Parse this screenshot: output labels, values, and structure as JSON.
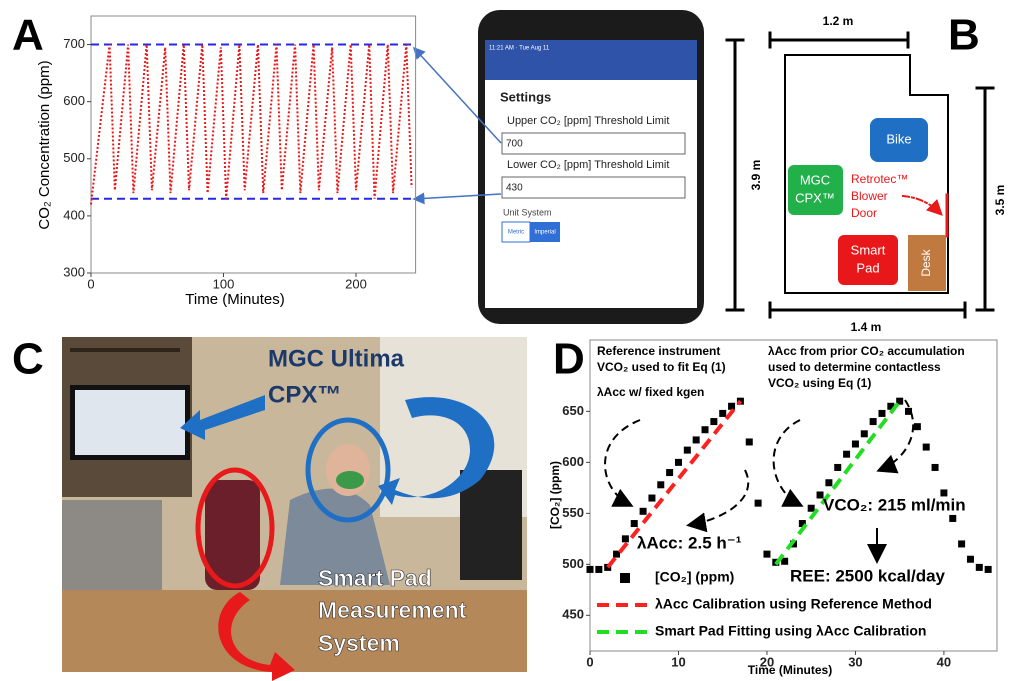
{
  "panel_labels": [
    "A",
    "B",
    "C",
    "D"
  ],
  "chart_data": [
    {
      "type": "line",
      "xlabel": "Time (Minutes)",
      "ylabel": "CO₂ Concentration (ppm)",
      "x": [
        0,
        14,
        18,
        28,
        32,
        42,
        46,
        56,
        60,
        70,
        74,
        84,
        88,
        98,
        102,
        112,
        116,
        126,
        130,
        140,
        144,
        154,
        158,
        168,
        172,
        182,
        186,
        196,
        200,
        210,
        214,
        224,
        228,
        238,
        242
      ],
      "values": [
        420,
        700,
        445,
        700,
        440,
        700,
        445,
        695,
        440,
        700,
        445,
        700,
        440,
        695,
        430,
        700,
        445,
        700,
        440,
        700,
        445,
        700,
        440,
        700,
        445,
        695,
        440,
        700,
        445,
        700,
        430,
        700,
        440,
        700,
        450
      ],
      "color": "#e8191a",
      "hlines": [
        {
          "value": 700,
          "color": "#2727e8"
        },
        {
          "value": 430,
          "color": "#2727e8"
        }
      ],
      "xlim": [
        0,
        245
      ],
      "xticks": [
        0,
        100,
        200
      ],
      "ylim": [
        300,
        750
      ],
      "yticks": [
        300,
        400,
        500,
        600,
        700
      ]
    },
    {
      "type": "scatter",
      "xlabel": "Time (Minutes)",
      "ylabel": "[CO₂] (ppm)",
      "series": [
        {
          "name": "[CO₂] (ppm)",
          "color": "#000000",
          "marker": "square",
          "x": [
            0,
            1,
            2,
            3,
            4,
            5,
            6,
            7,
            8,
            9,
            10,
            11,
            12,
            13,
            14,
            15,
            16,
            17,
            18,
            19,
            20,
            21,
            22,
            23,
            24,
            25,
            26,
            27,
            28,
            29,
            30,
            31,
            32,
            33,
            34,
            35,
            36,
            37,
            38,
            39,
            40,
            41,
            42,
            43,
            44,
            45
          ],
          "values": [
            495,
            495,
            497,
            510,
            525,
            540,
            552,
            565,
            578,
            590,
            600,
            612,
            622,
            632,
            640,
            648,
            655,
            660,
            620,
            560,
            510,
            502,
            503,
            520,
            540,
            555,
            568,
            580,
            595,
            608,
            618,
            628,
            640,
            648,
            655,
            660,
            650,
            635,
            615,
            595,
            570,
            545,
            520,
            505,
            497,
            495
          ]
        },
        {
          "name": "λAcc Calibration using Reference Method",
          "color": "#ff2020",
          "style": "dashed",
          "x": [
            2,
            17
          ],
          "values": [
            497,
            660
          ]
        },
        {
          "name": "Smart Pad Fitting using λAcc Calibration",
          "color": "#22dd22",
          "style": "dashed",
          "x": [
            21,
            35
          ],
          "values": [
            500,
            660
          ]
        }
      ],
      "annotations": [
        [
          "Reference instrument",
          "VCO₂ used to fit Eq (1)"
        ],
        [
          "λAcc w/ fixed kgen"
        ],
        [
          "λAcc from prior CO₂ accumulation",
          "used to determine contactless",
          "VCO₂ using Eq (1)"
        ],
        [
          "λAcc: 2.5 h⁻¹"
        ],
        [
          "VCO₂: 215 ml/min"
        ],
        [
          "REE: 2500 kcal/day"
        ]
      ],
      "xlim": [
        0,
        46
      ],
      "xticks": [
        0,
        10,
        20,
        30,
        40
      ],
      "ylim": [
        415,
        720
      ],
      "yticks": [
        450,
        500,
        550,
        600,
        650
      ]
    }
  ],
  "phone": {
    "status": "11:21 AM · Tue Aug 11",
    "title": "Settings",
    "upper_label": "Upper CO₂ [ppm] Threshold Limit",
    "upper_value": "700",
    "lower_label": "Lower CO₂ [ppm] Threshold Limit",
    "lower_value": "430",
    "unit_label": "Unit System",
    "units": [
      "Metric",
      "Imperial"
    ]
  },
  "floor_plan": {
    "dims": [
      "1.2 m",
      "3.9 m",
      "3.5 m",
      "1.4 m"
    ],
    "bike": "Bike",
    "mgc": [
      "MGC",
      "CPX™"
    ],
    "blower": [
      "Retrotec™",
      "Blower",
      "Door"
    ],
    "smart_pad": [
      "Smart",
      "Pad"
    ],
    "desk": "Desk"
  },
  "photo": {
    "mgc_label": [
      "MGC Ultima",
      "CPX™"
    ],
    "pad_label": [
      "Smart Pad",
      "Measurement",
      "System"
    ]
  }
}
